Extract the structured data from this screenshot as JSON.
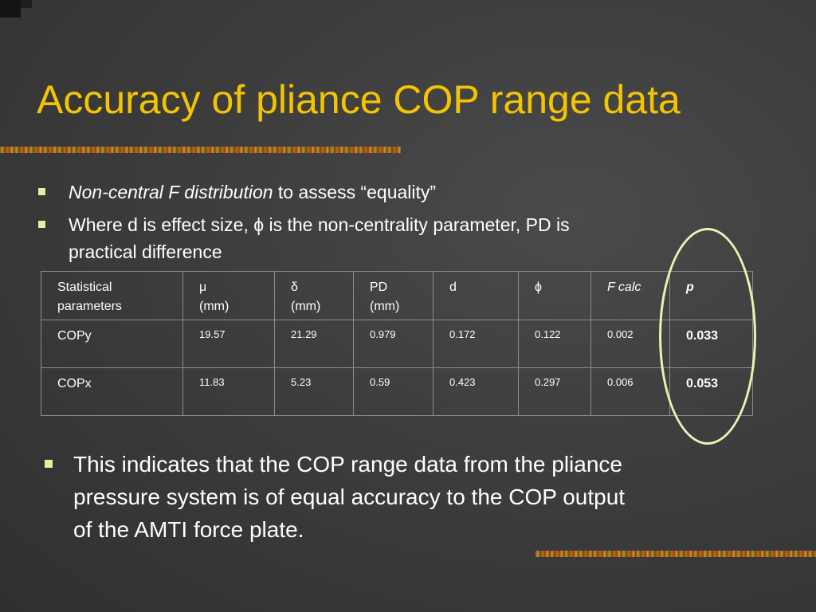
{
  "slide": {
    "title": "Accuracy of pliance COP range data",
    "bullets": [
      {
        "italic": "Non-central F distribution",
        "text": " to assess “equality”"
      },
      {
        "line1": "Where d is effect size, ϕ is the non-centrality parameter, PD is",
        "line2": "practical difference"
      },
      {
        "line1": "This indicates that the COP range data from the pliance",
        "line2": "pressure system is of equal accuracy to the COP output",
        "line3": "of the AMTI force plate."
      }
    ]
  },
  "table": {
    "headers": [
      {
        "line1": "Statistical",
        "line2": "parameters"
      },
      {
        "line1": "μ",
        "line2": "(mm)"
      },
      {
        "line1": "δ",
        "line2": "(mm)"
      },
      {
        "line1": "PD",
        "line2": "(mm)"
      },
      {
        "line1": "d",
        "line2": ""
      },
      {
        "line1": "ϕ",
        "line2": ""
      },
      {
        "line1": "F calc",
        "line2": ""
      },
      {
        "line1": "p",
        "line2": ""
      }
    ],
    "rows": [
      {
        "label": "COPy",
        "values": [
          "19.57",
          "21.29",
          "0.979",
          "0.172",
          "0.122",
          "0.002",
          "0.033"
        ]
      },
      {
        "label": "COPx",
        "values": [
          "11.83",
          "5.23",
          "0.59",
          "0.423",
          "0.297",
          "0.006",
          "0.053"
        ]
      }
    ]
  },
  "colors": {
    "title": "#f5c400",
    "background": "#3d3d3d",
    "bullet_marker": "#e8f0a0",
    "highlight_ellipse": "#eef2b0"
  }
}
